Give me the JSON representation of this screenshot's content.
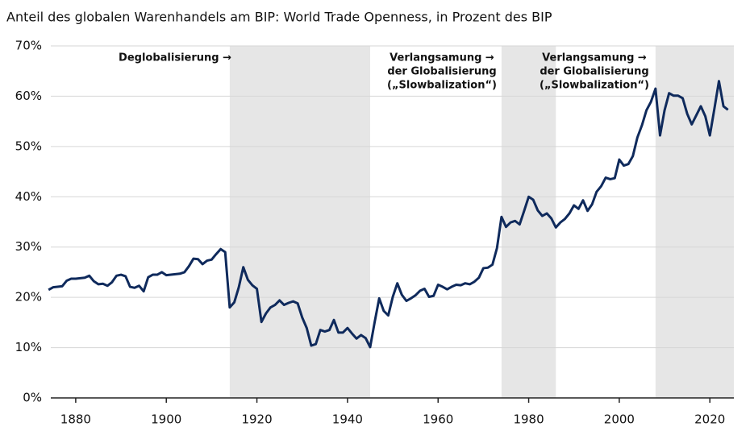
{
  "chart_data": {
    "type": "line",
    "title": "Anteil des globalen Warenhandels am BIP: World Trade Openness, in Prozent des BIP",
    "x": [
      1874,
      1875,
      1876,
      1877,
      1878,
      1879,
      1880,
      1881,
      1882,
      1883,
      1884,
      1885,
      1886,
      1887,
      1888,
      1889,
      1890,
      1891,
      1892,
      1893,
      1894,
      1895,
      1896,
      1897,
      1898,
      1899,
      1900,
      1901,
      1902,
      1903,
      1904,
      1905,
      1906,
      1907,
      1908,
      1909,
      1910,
      1911,
      1912,
      1913,
      1914,
      1915,
      1916,
      1917,
      1918,
      1919,
      1920,
      1921,
      1922,
      1923,
      1924,
      1925,
      1926,
      1927,
      1928,
      1929,
      1930,
      1931,
      1932,
      1933,
      1934,
      1935,
      1936,
      1937,
      1938,
      1939,
      1940,
      1941,
      1942,
      1943,
      1944,
      1945,
      1946,
      1947,
      1948,
      1949,
      1950,
      1951,
      1952,
      1953,
      1954,
      1955,
      1956,
      1957,
      1958,
      1959,
      1960,
      1961,
      1962,
      1963,
      1964,
      1965,
      1966,
      1967,
      1968,
      1969,
      1970,
      1971,
      1972,
      1973,
      1974,
      1975,
      1976,
      1977,
      1978,
      1979,
      1980,
      1981,
      1982,
      1983,
      1984,
      1985,
      1986,
      1987,
      1988,
      1989,
      1990,
      1991,
      1992,
      1993,
      1994,
      1995,
      1996,
      1997,
      1998,
      1999,
      2000,
      2001,
      2002,
      2003,
      2004,
      2005,
      2006,
      2007,
      2008,
      2009,
      2010,
      2011,
      2012,
      2013,
      2014,
      2015,
      2016,
      2017,
      2018,
      2019,
      2020,
      2021,
      2022,
      2023,
      2024
    ],
    "series": [
      {
        "color": "#0f2a5c",
        "values": [
          21.5,
          22,
          22.1,
          22.2,
          23.3,
          23.7,
          23.7,
          23.8,
          23.9,
          24.3,
          23.2,
          22.6,
          22.7,
          22.3,
          23,
          24.3,
          24.5,
          24.2,
          22.1,
          21.9,
          22.3,
          21.2,
          24,
          24.5,
          24.5,
          25,
          24.4,
          24.5,
          24.6,
          24.7,
          25,
          26.2,
          27.7,
          27.6,
          26.6,
          27.3,
          27.5,
          28.6,
          29.6,
          29,
          18,
          19,
          22,
          26,
          23.5,
          22.4,
          21.7,
          15.1,
          16.8,
          18,
          18.5,
          19.4,
          18.5,
          18.9,
          19.2,
          18.8,
          16,
          13.9,
          10.4,
          10.7,
          13.5,
          13.2,
          13.5,
          15.5,
          13,
          13,
          13.9,
          12.8,
          11.8,
          12.5,
          11.9,
          10.1,
          15.1,
          19.8,
          17.3,
          16.4,
          20.1,
          22.8,
          20.5,
          19.3,
          19.8,
          20.4,
          21.3,
          21.7,
          20.1,
          20.3,
          22.5,
          22.1,
          21.6,
          22.1,
          22.5,
          22.4,
          22.8,
          22.6,
          23.1,
          23.9,
          25.8,
          25.9,
          26.5,
          29.8,
          36,
          34,
          34.9,
          35.2,
          34.5,
          37.2,
          40,
          39.4,
          37.3,
          36.2,
          36.7,
          35.7,
          33.9,
          34.9,
          35.6,
          36.7,
          38.3,
          37.6,
          39.3,
          37.2,
          38.5,
          41,
          42.1,
          43.8,
          43.5,
          43.7,
          47.4,
          46.2,
          46.5,
          48.1,
          51.8,
          54.2,
          57.2,
          58.9,
          61.5,
          52.2,
          57.2,
          60.6,
          60.1,
          60.1,
          59.6,
          56.5,
          54.4,
          56.2,
          58,
          56,
          52.2,
          57.5,
          63,
          58,
          57.3
        ]
      }
    ],
    "xlim": [
      1874.5,
      2025.3
    ],
    "xticks": [
      1880,
      1900,
      1920,
      1940,
      1960,
      1980,
      2000,
      2020
    ],
    "ylim": [
      0,
      70
    ],
    "yticks": [
      {
        "value": 0,
        "label": "0%"
      },
      {
        "value": 10,
        "label": "10%"
      },
      {
        "value": 20,
        "label": "20%"
      },
      {
        "value": 30,
        "label": "30%"
      },
      {
        "value": 40,
        "label": "40%"
      },
      {
        "value": 50,
        "label": "50%"
      },
      {
        "value": 60,
        "label": "60%"
      },
      {
        "value": 70,
        "label": "70%"
      }
    ],
    "grid": true,
    "shade_color": "#e6e6e6",
    "shaded_periods": [
      [
        1914,
        1945
      ],
      [
        1974,
        1986
      ],
      [
        2008,
        2025.3
      ]
    ],
    "annotations": [
      {
        "lines": [
          "Deglobalisierung →"
        ]
      },
      {
        "lines": [
          "Verlangsamung →",
          "der Globalisierung",
          "(„Slowbalization“)"
        ]
      },
      {
        "lines": [
          "Verlangsamung →",
          "der Globalisierung",
          "(„Slowbalization“)"
        ]
      }
    ]
  }
}
